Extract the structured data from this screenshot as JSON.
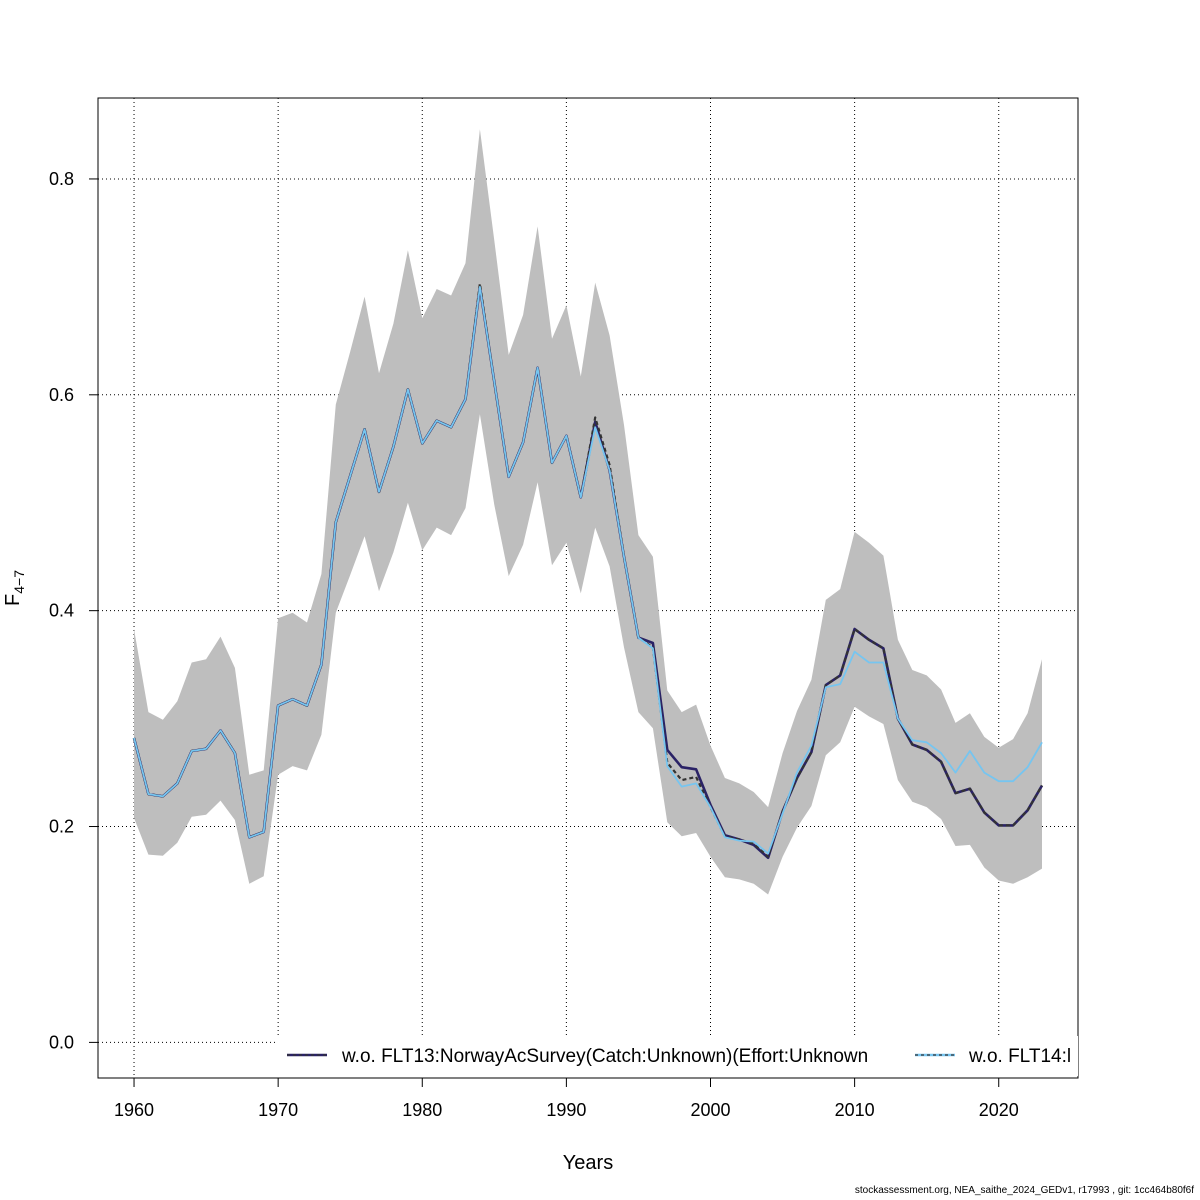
{
  "chart_data": {
    "type": "line",
    "xlabel": "Years",
    "ylabel_main": "F",
    "ylabel_sub": "4−7",
    "xlim": [
      1957.5,
      2025.5
    ],
    "ylim": [
      -0.033,
      0.875
    ],
    "xticks": [
      "1960",
      "1970",
      "1980",
      "1990",
      "2000",
      "2010",
      "2020"
    ],
    "yticks": [
      "0.0",
      "0.2",
      "0.4",
      "0.6",
      "0.8"
    ],
    "grid": true,
    "legend_placement": "bottom-right",
    "x": [
      1960,
      1961,
      1962,
      1963,
      1964,
      1965,
      1966,
      1967,
      1968,
      1969,
      1970,
      1971,
      1972,
      1973,
      1974,
      1975,
      1976,
      1977,
      1978,
      1979,
      1980,
      1981,
      1982,
      1983,
      1984,
      1985,
      1986,
      1987,
      1988,
      1989,
      1990,
      1991,
      1992,
      1993,
      1994,
      1995,
      1996,
      1997,
      1998,
      1999,
      2000,
      2001,
      2002,
      2003,
      2004,
      2005,
      2006,
      2007,
      2008,
      2009,
      2010,
      2011,
      2012,
      2013,
      2014,
      2015,
      2016,
      2017,
      2018,
      2019,
      2020,
      2021,
      2022,
      2023
    ],
    "band_upper": [
      0.383,
      0.306,
      0.299,
      0.316,
      0.352,
      0.355,
      0.376,
      0.347,
      0.248,
      0.252,
      0.393,
      0.398,
      0.389,
      0.434,
      0.591,
      0.64,
      0.691,
      0.62,
      0.666,
      0.734,
      0.671,
      0.698,
      0.692,
      0.722,
      0.846,
      0.743,
      0.637,
      0.674,
      0.756,
      0.652,
      0.683,
      0.617,
      0.704,
      0.655,
      0.572,
      0.47,
      0.45,
      0.326,
      0.306,
      0.313,
      0.275,
      0.245,
      0.24,
      0.232,
      0.218,
      0.268,
      0.307,
      0.336,
      0.41,
      0.42,
      0.473,
      0.463,
      0.451,
      0.373,
      0.345,
      0.34,
      0.327,
      0.296,
      0.305,
      0.283,
      0.273,
      0.281,
      0.305,
      0.355
    ],
    "band_lower": [
      0.208,
      0.174,
      0.173,
      0.185,
      0.209,
      0.211,
      0.224,
      0.206,
      0.147,
      0.154,
      0.248,
      0.256,
      0.252,
      0.285,
      0.398,
      0.433,
      0.469,
      0.418,
      0.454,
      0.5,
      0.456,
      0.477,
      0.47,
      0.495,
      0.582,
      0.498,
      0.432,
      0.461,
      0.519,
      0.442,
      0.463,
      0.416,
      0.477,
      0.441,
      0.366,
      0.306,
      0.291,
      0.204,
      0.191,
      0.194,
      0.172,
      0.153,
      0.151,
      0.147,
      0.137,
      0.172,
      0.199,
      0.219,
      0.266,
      0.278,
      0.311,
      0.302,
      0.295,
      0.243,
      0.223,
      0.218,
      0.207,
      0.182,
      0.183,
      0.162,
      0.15,
      0.147,
      0.153,
      0.161
    ],
    "series": [
      {
        "name": "w.o. FLT13:NorwayAcSurvey(Catch:Unknown)(Effort:Unknown",
        "color": "#2a2266",
        "dash": "solid",
        "values": [
          0.282,
          0.23,
          0.228,
          0.24,
          0.27,
          0.272,
          0.289,
          0.268,
          0.19,
          0.195,
          0.312,
          0.318,
          0.312,
          0.35,
          0.482,
          0.525,
          0.568,
          0.51,
          0.552,
          0.605,
          0.555,
          0.576,
          0.57,
          0.596,
          0.7,
          0.612,
          0.524,
          0.556,
          0.625,
          0.537,
          0.562,
          0.505,
          0.575,
          0.53,
          0.45,
          0.375,
          0.37,
          0.271,
          0.255,
          0.253,
          0.22,
          0.192,
          0.188,
          0.183,
          0.171,
          0.214,
          0.245,
          0.269,
          0.331,
          0.34,
          0.383,
          0.373,
          0.365,
          0.3,
          0.276,
          0.271,
          0.26,
          0.231,
          0.235,
          0.213,
          0.201,
          0.201,
          0.215,
          0.238
        ]
      },
      {
        "name": "w.o. FLT14:l",
        "color": "#76c5f0",
        "dash": "solid",
        "values": [
          0.282,
          0.23,
          0.228,
          0.24,
          0.27,
          0.272,
          0.289,
          0.268,
          0.19,
          0.195,
          0.312,
          0.318,
          0.312,
          0.35,
          0.482,
          0.525,
          0.568,
          0.51,
          0.552,
          0.605,
          0.555,
          0.576,
          0.57,
          0.596,
          0.7,
          0.612,
          0.524,
          0.556,
          0.625,
          0.537,
          0.562,
          0.505,
          0.57,
          0.53,
          0.45,
          0.375,
          0.365,
          0.256,
          0.237,
          0.24,
          0.218,
          0.19,
          0.187,
          0.186,
          0.175,
          0.212,
          0.25,
          0.275,
          0.329,
          0.332,
          0.362,
          0.352,
          0.352,
          0.3,
          0.28,
          0.278,
          0.268,
          0.25,
          0.27,
          0.25,
          0.242,
          0.242,
          0.255,
          0.278
        ]
      },
      {
        "name": "",
        "color": "#333333",
        "dash": "dashed",
        "values": [
          0.282,
          0.23,
          0.228,
          0.24,
          0.27,
          0.272,
          0.289,
          0.268,
          0.19,
          0.195,
          0.312,
          0.318,
          0.312,
          0.35,
          0.482,
          0.525,
          0.568,
          0.51,
          0.552,
          0.605,
          0.555,
          0.576,
          0.57,
          0.596,
          0.703,
          0.612,
          0.524,
          0.556,
          0.625,
          0.537,
          0.562,
          0.505,
          0.579,
          0.535,
          0.45,
          0.375,
          0.366,
          0.259,
          0.243,
          0.246,
          0.218,
          0.191,
          0.188,
          0.184,
          0.172,
          0.214,
          0.245,
          0.269,
          0.331,
          0.34,
          0.383,
          0.373,
          0.365,
          0.3,
          0.276,
          0.271,
          0.26,
          0.231,
          0.235,
          0.213,
          0.201,
          0.201,
          0.215,
          0.238
        ]
      }
    ],
    "colors": {
      "band": "#bebebe",
      "grid": "#000000",
      "frame": "#000000"
    }
  },
  "footer": "stockassessment.org, NEA_saithe_2024_GEDv1, r17993 , git: 1cc464b80f6f"
}
